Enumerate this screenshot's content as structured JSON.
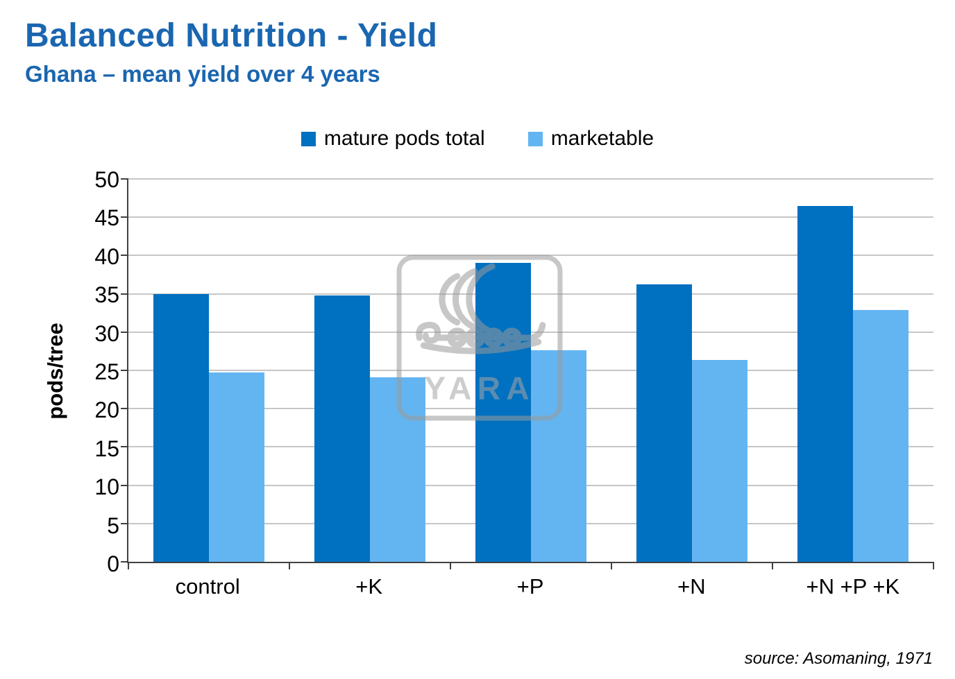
{
  "header": {
    "title": "Balanced Nutrition - Yield",
    "subtitle": "Ghana – mean yield over 4 years"
  },
  "footer": {
    "source": "source: Asomaning, 1971"
  },
  "watermark": {
    "icon": "yara-viking-ship-logo",
    "label": "YARA"
  },
  "colors": {
    "heading": "#1a66b0",
    "series_dark_blue": "#0070c0",
    "series_light_blue": "#63b5f2",
    "gridline": "#c6c6c6",
    "axis": "#404040",
    "watermark": "#9a9a9a"
  },
  "chart_data": {
    "type": "bar",
    "title": "Balanced Nutrition - Yield",
    "subtitle": "Ghana – mean yield over 4 years",
    "categories": [
      "control",
      "+K",
      "+P",
      "+N",
      "+N +P +K"
    ],
    "series": [
      {
        "name": "mature pods total",
        "color": "#0070c0",
        "values": [
          35.0,
          34.8,
          39.0,
          36.2,
          46.5
        ]
      },
      {
        "name": "marketable",
        "color": "#63b5f2",
        "values": [
          24.7,
          24.1,
          27.6,
          26.4,
          32.9
        ]
      }
    ],
    "xlabel": "",
    "ylabel": "pods/tree",
    "ylim": [
      0,
      50
    ],
    "ytick_step": 5,
    "grid": true,
    "legend_position": "top-center"
  }
}
